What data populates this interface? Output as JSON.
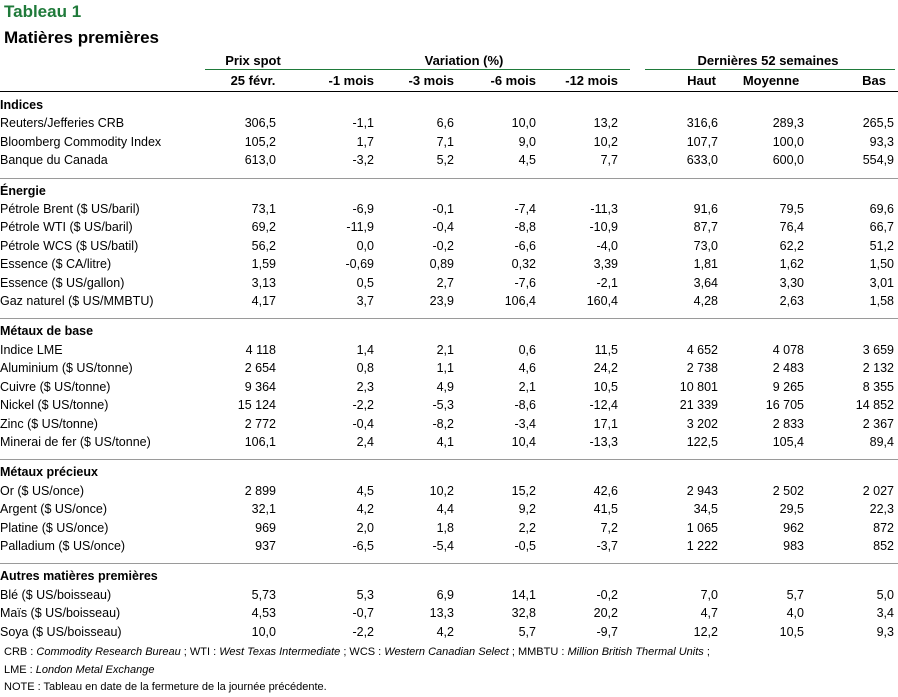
{
  "title": "Tableau 1",
  "subtitle": "Matières premières",
  "headers": {
    "group_prix_spot": "Prix spot",
    "group_variation": "Variation (%)",
    "group_52": "Dernières 52 semaines",
    "date": "25 févr.",
    "m1": "-1 mois",
    "m3": "-3 mois",
    "m6": "-6 mois",
    "m12": "-12 mois",
    "haut": "Haut",
    "moyenne": "Moyenne",
    "bas": "Bas"
  },
  "sections": [
    {
      "name": "Indices",
      "rows": [
        [
          "Reuters/Jefferies CRB",
          "306,5",
          "-1,1",
          "6,6",
          "10,0",
          "13,2",
          "316,6",
          "289,3",
          "265,5"
        ],
        [
          "Bloomberg Commodity Index",
          "105,2",
          "1,7",
          "7,1",
          "9,0",
          "10,2",
          "107,7",
          "100,0",
          "93,3"
        ],
        [
          "Banque du Canada",
          "613,0",
          "-3,2",
          "5,2",
          "4,5",
          "7,7",
          "633,0",
          "600,0",
          "554,9"
        ]
      ]
    },
    {
      "name": "Énergie",
      "rows": [
        [
          "Pétrole Brent ($ US/baril)",
          "73,1",
          "-6,9",
          "-0,1",
          "-7,4",
          "-11,3",
          "91,6",
          "79,5",
          "69,6"
        ],
        [
          "Pétrole WTI ($ US/baril)",
          "69,2",
          "-11,9",
          "-0,4",
          "-8,8",
          "-10,9",
          "87,7",
          "76,4",
          "66,7"
        ],
        [
          "Pétrole WCS ($ US/batil)",
          "56,2",
          "0,0",
          "-0,2",
          "-6,6",
          "-4,0",
          "73,0",
          "62,2",
          "51,2"
        ],
        [
          "Essence ($ CA/litre)",
          "1,59",
          "-0,69",
          "0,89",
          "0,32",
          "3,39",
          "1,81",
          "1,62",
          "1,50"
        ],
        [
          "Essence ($ US/gallon)",
          "3,13",
          "0,5",
          "2,7",
          "-7,6",
          "-2,1",
          "3,64",
          "3,30",
          "3,01"
        ],
        [
          "Gaz naturel ($ US/MMBTU)",
          "4,17",
          "3,7",
          "23,9",
          "106,4",
          "160,4",
          "4,28",
          "2,63",
          "1,58"
        ]
      ]
    },
    {
      "name": "Métaux de base",
      "rows": [
        [
          "Indice LME",
          "4 118",
          "1,4",
          "2,1",
          "0,6",
          "11,5",
          "4 652",
          "4 078",
          "3 659"
        ],
        [
          "Aluminium ($ US/tonne)",
          "2 654",
          "0,8",
          "1,1",
          "4,6",
          "24,2",
          "2 738",
          "2 483",
          "2 132"
        ],
        [
          "Cuivre ($ US/tonne)",
          "9 364",
          "2,3",
          "4,9",
          "2,1",
          "10,5",
          "10 801",
          "9 265",
          "8 355"
        ],
        [
          "Nickel ($ US/tonne)",
          "15 124",
          "-2,2",
          "-5,3",
          "-8,6",
          "-12,4",
          "21 339",
          "16 705",
          "14 852"
        ],
        [
          "Zinc ($ US/tonne)",
          "2 772",
          "-0,4",
          "-8,2",
          "-3,4",
          "17,1",
          "3 202",
          "2 833",
          "2 367"
        ],
        [
          "Minerai de fer ($ US/tonne)",
          "106,1",
          "2,4",
          "4,1",
          "10,4",
          "-13,3",
          "122,5",
          "105,4",
          "89,4"
        ]
      ]
    },
    {
      "name": "Métaux précieux",
      "rows": [
        [
          "Or ($ US/once)",
          "2 899",
          "4,5",
          "10,2",
          "15,2",
          "42,6",
          "2 943",
          "2 502",
          "2 027"
        ],
        [
          "Argent ($ US/once)",
          "32,1",
          "4,2",
          "4,4",
          "9,2",
          "41,5",
          "34,5",
          "29,5",
          "22,3"
        ],
        [
          "Platine ($ US/once)",
          "969",
          "2,0",
          "1,8",
          "2,2",
          "7,2",
          "1 065",
          "962",
          "872"
        ],
        [
          "Palladium ($ US/once)",
          "937",
          "-6,5",
          "-5,4",
          "-0,5",
          "-3,7",
          "1 222",
          "983",
          "852"
        ]
      ]
    },
    {
      "name": "Autres matières premières",
      "rows": [
        [
          "Blé ($ US/boisseau)",
          "5,73",
          "5,3",
          "6,9",
          "14,1",
          "-0,2",
          "7,0",
          "5,7",
          "5,0"
        ],
        [
          "Maïs ($ US/boisseau)",
          "4,53",
          "-0,7",
          "13,3",
          "32,8",
          "20,2",
          "4,7",
          "4,0",
          "3,4"
        ],
        [
          "Soya ($ US/boisseau)",
          "10,0",
          "-2,2",
          "4,2",
          "5,7",
          "-9,7",
          "12,2",
          "10,5",
          "9,3"
        ]
      ]
    }
  ],
  "notes": {
    "line1": [
      {
        "t": "CRB : ",
        "i": false
      },
      {
        "t": "Commodity Research Bureau",
        "i": true
      },
      {
        "t": " ; WTI : ",
        "i": false
      },
      {
        "t": "West Texas Intermediate",
        "i": true
      },
      {
        "t": " ; WCS : ",
        "i": false
      },
      {
        "t": "Western Canadian Select",
        "i": true
      },
      {
        "t": " ; MMBTU : ",
        "i": false
      },
      {
        "t": "Million British Thermal Units",
        "i": true
      },
      {
        "t": " ;",
        "i": false
      }
    ],
    "line2": [
      {
        "t": "LME : ",
        "i": false
      },
      {
        "t": "London Metal Exchange",
        "i": true
      }
    ],
    "line3": [
      {
        "t": "NOTE : Tableau en date de la fermeture de la journée précédente.",
        "i": false
      }
    ]
  },
  "colors": {
    "accent": "#1f7a3a",
    "separator": "#9a9a9a"
  }
}
